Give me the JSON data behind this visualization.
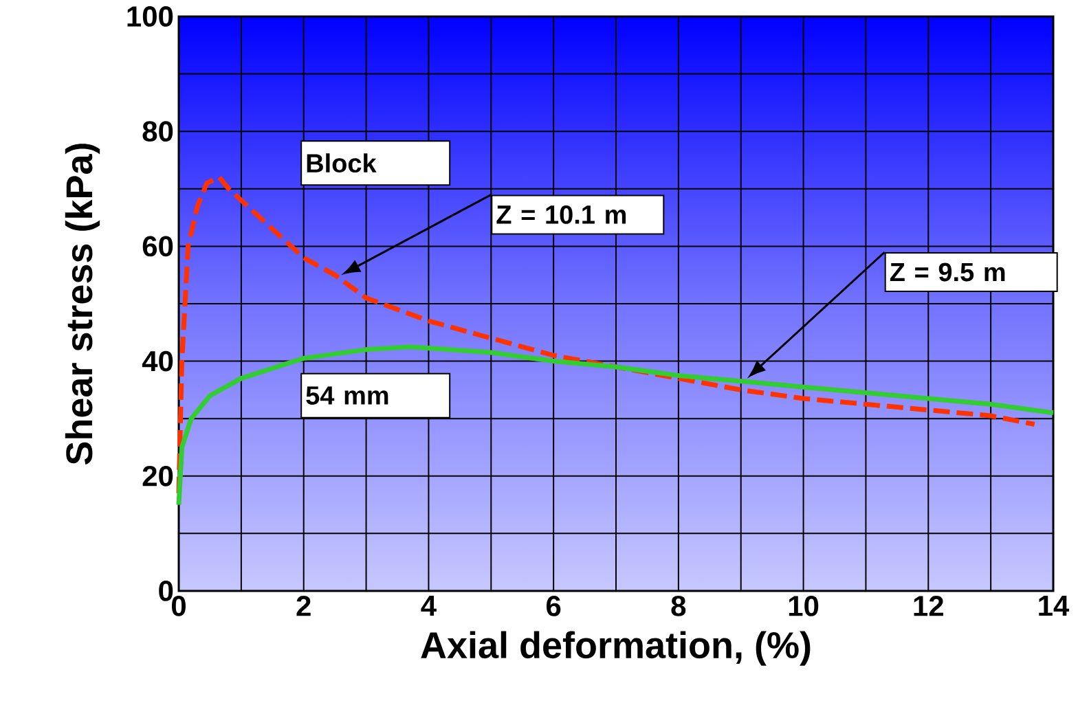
{
  "chart_data": {
    "type": "line",
    "xlabel": "Axial deformation, (%)",
    "ylabel": "Shear stress (kPa)",
    "xlim": [
      0,
      14
    ],
    "ylim": [
      0,
      100
    ],
    "xticks": [
      0,
      2,
      4,
      6,
      8,
      10,
      12,
      14
    ],
    "yticks": [
      0,
      20,
      40,
      60,
      80,
      100
    ],
    "grid": true,
    "marker": "none",
    "series": [
      {
        "name": "Block",
        "color": "#ff3300",
        "line_style": "dashed",
        "x": [
          0,
          0.05,
          0.15,
          0.3,
          0.45,
          0.65,
          0.8,
          1.0,
          1.5,
          2.0,
          2.5,
          3.0,
          4.0,
          5.0,
          6.0,
          7.0,
          8.0,
          9.0,
          10.0,
          11.0,
          12.0,
          13.0,
          13.7
        ],
        "values": [
          17,
          40,
          60,
          67,
          71,
          72,
          70,
          68,
          63,
          58,
          55,
          51,
          47,
          44,
          41,
          39,
          37,
          35,
          33.5,
          32.5,
          31.5,
          30.5,
          29
        ]
      },
      {
        "name": "54 mm",
        "color": "#33cc33",
        "line_style": "solid",
        "x": [
          0,
          0.05,
          0.2,
          0.5,
          1.0,
          2.0,
          3.0,
          3.7,
          5.0,
          6.0,
          7.0,
          8.0,
          9.0,
          10.0,
          11.0,
          12.0,
          13.0,
          14.0
        ],
        "values": [
          15,
          25,
          30,
          34,
          37,
          40.5,
          42,
          42.5,
          41.5,
          40,
          39,
          37.5,
          36.5,
          35.5,
          34.5,
          33.5,
          32.5,
          31
        ]
      }
    ],
    "annotations": [
      "Z = 10.1 m",
      "Z = 9.5 m"
    ]
  }
}
